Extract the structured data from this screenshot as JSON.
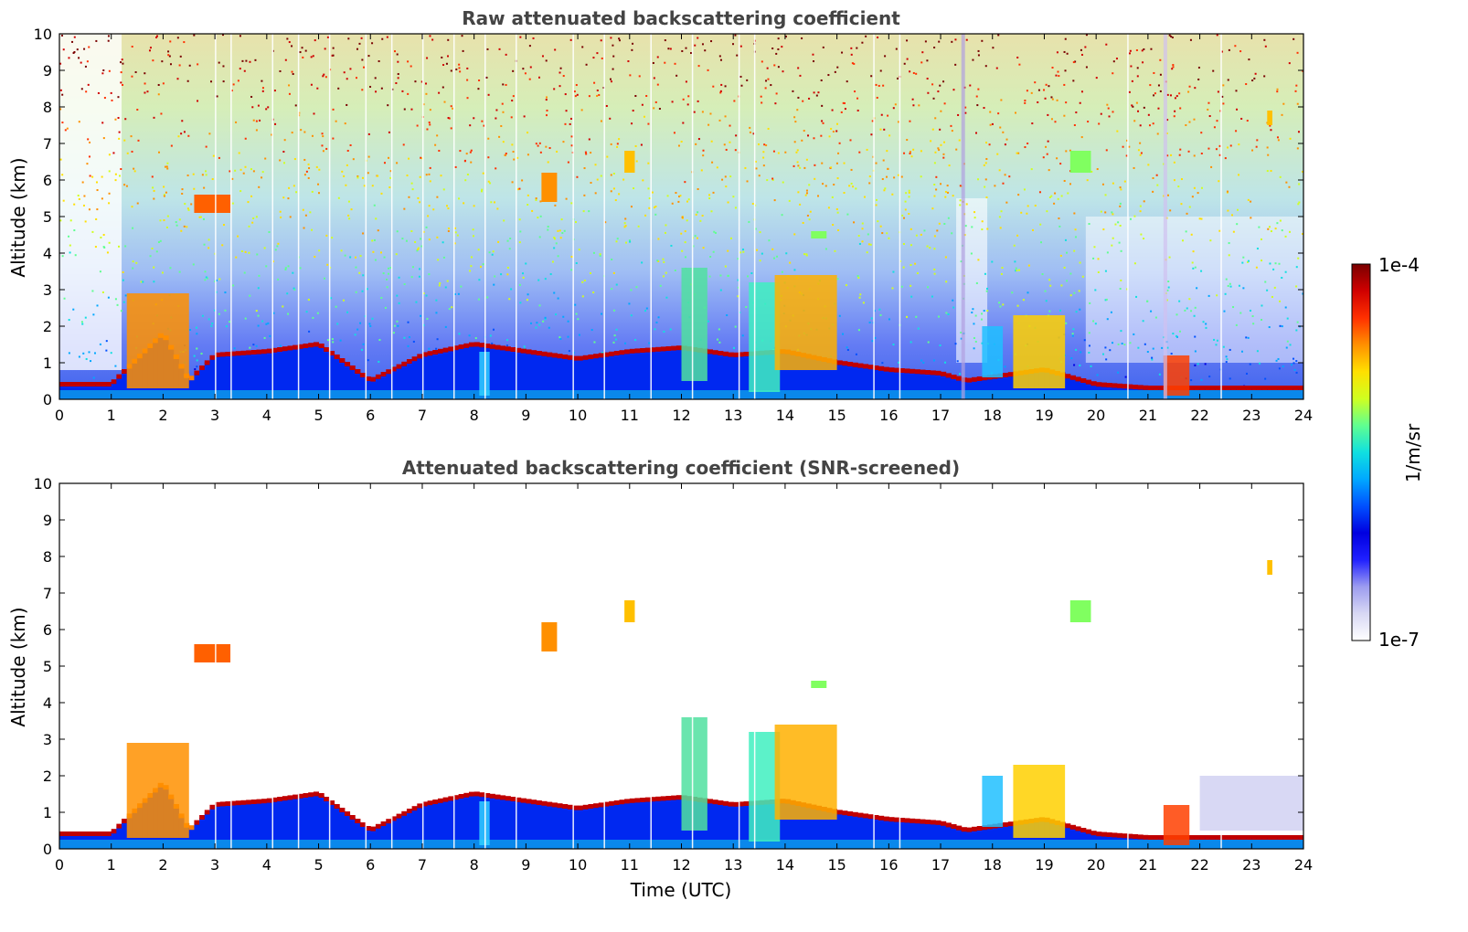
{
  "chart_data": [
    {
      "type": "heatmap",
      "title": "Raw attenuated backscattering coefficient",
      "xlabel": "",
      "ylabel": "Altitude (km)",
      "xlim": [
        0,
        24
      ],
      "ylim": [
        0,
        10
      ],
      "xticks": [
        "0",
        "1",
        "2",
        "3",
        "4",
        "5",
        "6",
        "7",
        "8",
        "9",
        "10",
        "11",
        "12",
        "13",
        "14",
        "15",
        "16",
        "17",
        "18",
        "19",
        "20",
        "21",
        "22",
        "23",
        "24"
      ],
      "yticks": [
        "0",
        "1",
        "2",
        "3",
        "4",
        "5",
        "6",
        "7",
        "8",
        "9",
        "10"
      ],
      "features": [
        {
          "kind": "boundary-layer",
          "x": [
            0,
            1,
            2,
            2.5,
            3,
            4,
            5,
            6,
            7,
            8,
            9,
            10,
            11,
            12,
            13,
            14,
            15,
            16,
            17,
            17.5,
            18,
            19,
            20,
            21,
            22,
            23,
            24
          ],
          "y": [
            0.4,
            0.4,
            1.8,
            0.5,
            1.2,
            1.3,
            1.5,
            0.5,
            1.2,
            1.5,
            1.3,
            1.1,
            1.3,
            1.4,
            1.2,
            1.3,
            1.0,
            0.8,
            0.7,
            0.5,
            0.6,
            0.8,
            0.4,
            0.3,
            0.3,
            0.3,
            0.3
          ]
        },
        {
          "kind": "cloud",
          "x": [
            14.2
          ],
          "y": [
            2.6
          ]
        },
        {
          "kind": "cloud",
          "x": [
            18.7
          ],
          "y": [
            1.6
          ]
        },
        {
          "kind": "cloud",
          "x": [
            9.4
          ],
          "y": [
            5.9
          ]
        }
      ]
    },
    {
      "type": "heatmap",
      "title": "Attenuated backscattering coefficient (SNR-screened)",
      "xlabel": "Time (UTC)",
      "ylabel": "Altitude (km)",
      "xlim": [
        0,
        24
      ],
      "ylim": [
        0,
        10
      ],
      "xticks": [
        "0",
        "1",
        "2",
        "3",
        "4",
        "5",
        "6",
        "7",
        "8",
        "9",
        "10",
        "11",
        "12",
        "13",
        "14",
        "15",
        "16",
        "17",
        "18",
        "19",
        "20",
        "21",
        "22",
        "23",
        "24"
      ],
      "yticks": [
        "0",
        "1",
        "2",
        "3",
        "4",
        "5",
        "6",
        "7",
        "8",
        "9",
        "10"
      ]
    }
  ],
  "colorbar": {
    "label": "1/m/sr",
    "max_label": "1e-4",
    "min_label": "1e-7",
    "colors": [
      "#ffffff",
      "#d8d8f4",
      "#9c9cf0",
      "#2020ff",
      "#0000e0",
      "#0050ff",
      "#00a8ff",
      "#10e0e0",
      "#60ff90",
      "#d0ff20",
      "#ffe000",
      "#ff9000",
      "#ff3000",
      "#d00000",
      "#7a0000"
    ]
  }
}
